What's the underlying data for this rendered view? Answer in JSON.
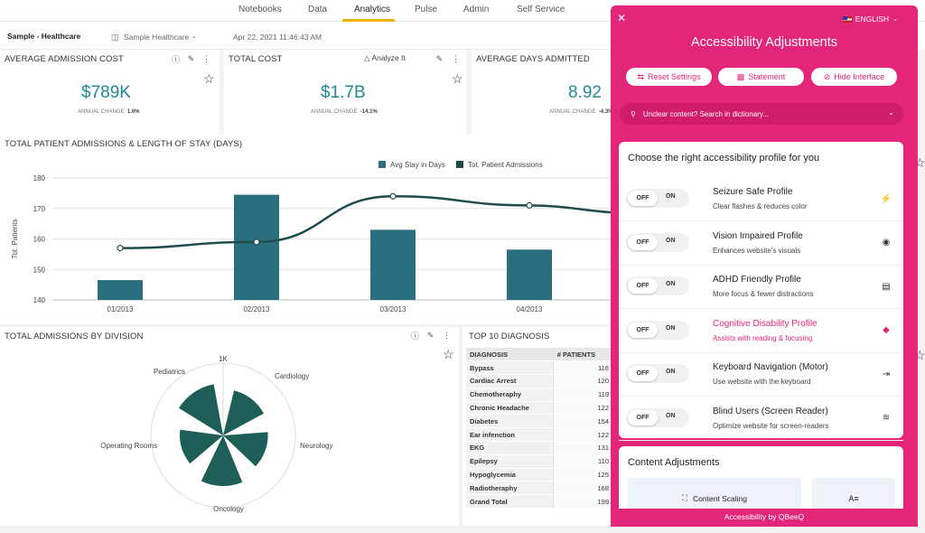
{
  "nav": {
    "tabs": [
      {
        "label": "Notebooks"
      },
      {
        "label": "Data"
      },
      {
        "label": "Analytics"
      },
      {
        "label": "Pulse"
      },
      {
        "label": "Admin"
      },
      {
        "label": "Self Service"
      }
    ],
    "active_tab": "Analytics"
  },
  "subbar": {
    "title": "Sample - Healthcare",
    "source": "Sample Healthcare",
    "timestamp": "Apr 22, 2021 11:46:43 AM"
  },
  "kpis": [
    {
      "title": "AVERAGE ADMISSION COST",
      "value": "$789K",
      "change_label": "ANNUAL CHANGE",
      "change": "1.6%"
    },
    {
      "title": "TOTAL COST",
      "value": "$1.7B",
      "change_label": "ANNUAL CHANGE",
      "change": "-14.1%",
      "action": "Analyze It"
    },
    {
      "title": "AVERAGE DAYS ADMITTED",
      "value": "8.92",
      "change_label": "ANNUAL CHANGE",
      "change": "-4.3%"
    }
  ],
  "chart_data": [
    {
      "type": "bar",
      "title": "TOTAL PATIENT ADMISSIONS & LENGTH OF STAY (DAYS)",
      "categories": [
        "01/2013",
        "02/2013",
        "03/2013",
        "04/2013"
      ],
      "ylabel": "Tot. Patients",
      "ylim": [
        140,
        180
      ],
      "yticks": [
        140,
        150,
        160,
        170,
        180
      ],
      "legend": [
        "Avg Stay in Days",
        "Tot. Patient Admissions"
      ],
      "series": [
        {
          "name": "Avg Stay in Days",
          "type": "bar",
          "color": "#2a6f7f",
          "values": [
            146.5,
            174.5,
            163,
            156.5
          ]
        },
        {
          "name": "Tot. Patient Admissions",
          "type": "line",
          "color": "#1e4d4f",
          "values": [
            157,
            159,
            174,
            171
          ]
        }
      ],
      "grid": true
    },
    {
      "type": "pie",
      "title": "TOTAL ADMISSIONS BY DIVISION",
      "subtype": "polar",
      "color": "#1e5e58",
      "rmax_label": "1K",
      "categories": [
        "Pediatrics",
        "Cardiology",
        "Neurology",
        "Oncology",
        "Operating Rooms"
      ],
      "values": [
        720,
        640,
        620,
        700,
        600
      ]
    }
  ],
  "diagnosis": {
    "title": "TOP 10 DIAGNOSIS",
    "headers": [
      "DIAGNOSIS",
      "# PATIENTS"
    ],
    "rows": [
      [
        "Bypass",
        "116"
      ],
      [
        "Cardiac Arrest",
        "120"
      ],
      [
        "Chemotheraphy",
        "119"
      ],
      [
        "Chronic Headache",
        "122"
      ],
      [
        "Diabetes",
        "154"
      ],
      [
        "Ear infenction",
        "122"
      ],
      [
        "EKG",
        "131"
      ],
      [
        "Epilepsy",
        "110"
      ],
      [
        "Hypoglycemia",
        "125"
      ],
      [
        "Radiotheraphy",
        "168"
      ],
      [
        "Grand Total",
        "199"
      ]
    ]
  },
  "panel": {
    "title": "Accessibility Adjustments",
    "language": "ENGLISH",
    "buttons": {
      "reset": "Reset Settings",
      "statement": "Statement",
      "hide": "Hide Interface"
    },
    "search_placeholder": "Unclear content? Search in dictionary...",
    "profiles_heading": "Choose the right accessibility profile for you",
    "toggle_off": "OFF",
    "toggle_on": "ON",
    "profiles": [
      {
        "title": "Seizure Safe Profile",
        "desc": "Clear flashes & reduces color",
        "icon": "lightning-icon"
      },
      {
        "title": "Vision Impaired Profile",
        "desc": "Enhances website's visuals",
        "icon": "eye-icon"
      },
      {
        "title": "ADHD Friendly Profile",
        "desc": "More focus & fewer distractions",
        "icon": "layers-icon"
      },
      {
        "title": "Cognitive Disability Profile",
        "desc": "Assists with reading & focusing",
        "icon": "diamond-icon"
      },
      {
        "title": "Keyboard Navigation (Motor)",
        "desc": "Use website with the keyboard",
        "icon": "arrow-bar-icon"
      },
      {
        "title": "Blind Users (Screen Reader)",
        "desc": "Optimize website for screen-readers",
        "icon": "soundwave-icon"
      }
    ],
    "content_heading": "Content Adjustments",
    "content_scaling": "Content Scaling",
    "footer": "Accessibility by QBeeQ"
  }
}
